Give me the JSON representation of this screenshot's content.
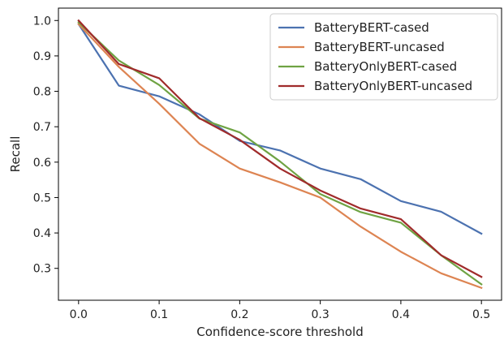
{
  "chart_data": {
    "type": "line",
    "xlabel": "Confidence-score threshold",
    "ylabel": "Recall",
    "xlim": [
      -0.025,
      0.525
    ],
    "ylim": [
      0.21,
      1.035
    ],
    "xticks": [
      0.0,
      0.1,
      0.2,
      0.3,
      0.4,
      0.5
    ],
    "xtick_labels": [
      "0.0",
      "0.1",
      "0.2",
      "0.3",
      "0.4",
      "0.5"
    ],
    "yticks": [
      0.3,
      0.4,
      0.5,
      0.6,
      0.7,
      0.8,
      0.9,
      1.0
    ],
    "ytick_labels": [
      "0.3",
      "0.4",
      "0.5",
      "0.6",
      "0.7",
      "0.8",
      "0.9",
      "1.0"
    ],
    "grid": false,
    "legend_position": "top-right",
    "x": [
      0.0,
      0.05,
      0.1,
      0.15,
      0.2,
      0.25,
      0.3,
      0.35,
      0.4,
      0.45,
      0.5
    ],
    "series": [
      {
        "name": "BatteryBERT-cased",
        "color": "#4c72b0",
        "values": [
          0.99,
          0.816,
          0.786,
          0.735,
          0.66,
          0.633,
          0.582,
          0.552,
          0.49,
          0.46,
          0.398
        ]
      },
      {
        "name": "BatteryBERT-uncased",
        "color": "#dd8452",
        "values": [
          0.99,
          0.869,
          0.765,
          0.652,
          0.582,
          0.543,
          0.5,
          0.418,
          0.347,
          0.286,
          0.245
        ]
      },
      {
        "name": "BatteryOnlyBERT-cased",
        "color": "#6fa343",
        "values": [
          0.995,
          0.887,
          0.818,
          0.723,
          0.684,
          0.602,
          0.51,
          0.459,
          0.429,
          0.337,
          0.255
        ]
      },
      {
        "name": "BatteryOnlyBERT-uncased",
        "color": "#a02b2b",
        "values": [
          1.0,
          0.877,
          0.837,
          0.724,
          0.663,
          0.582,
          0.52,
          0.469,
          0.439,
          0.337,
          0.276
        ]
      }
    ]
  }
}
